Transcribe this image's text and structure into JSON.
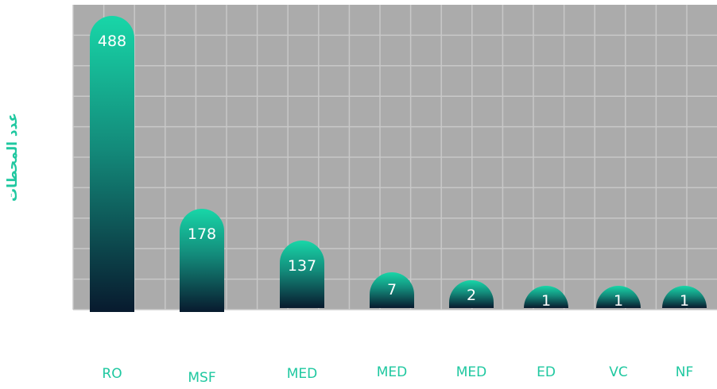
{
  "chart_data": {
    "type": "bar",
    "title": "",
    "xlabel": "",
    "ylabel": "عدد المحطات",
    "categories": [
      "RO",
      "MSF",
      "MED",
      "MED",
      "MED",
      "ED",
      "VC",
      "NF"
    ],
    "values": [
      488,
      178,
      137,
      7,
      2,
      1,
      1,
      1
    ],
    "data_labels": [
      "488",
      "178",
      "137",
      "7",
      "2",
      "1",
      "1",
      "1"
    ],
    "grid": true,
    "legend": "none"
  },
  "colors": {
    "plot_background": "#ababab",
    "grid": "#c8c8c8",
    "bar_top": "#18d6a8",
    "bar_bottom": "#081a2e",
    "data_label": "#ffffff",
    "category_label": "#1fc8a0",
    "axis_label": "#1fc8a0"
  }
}
